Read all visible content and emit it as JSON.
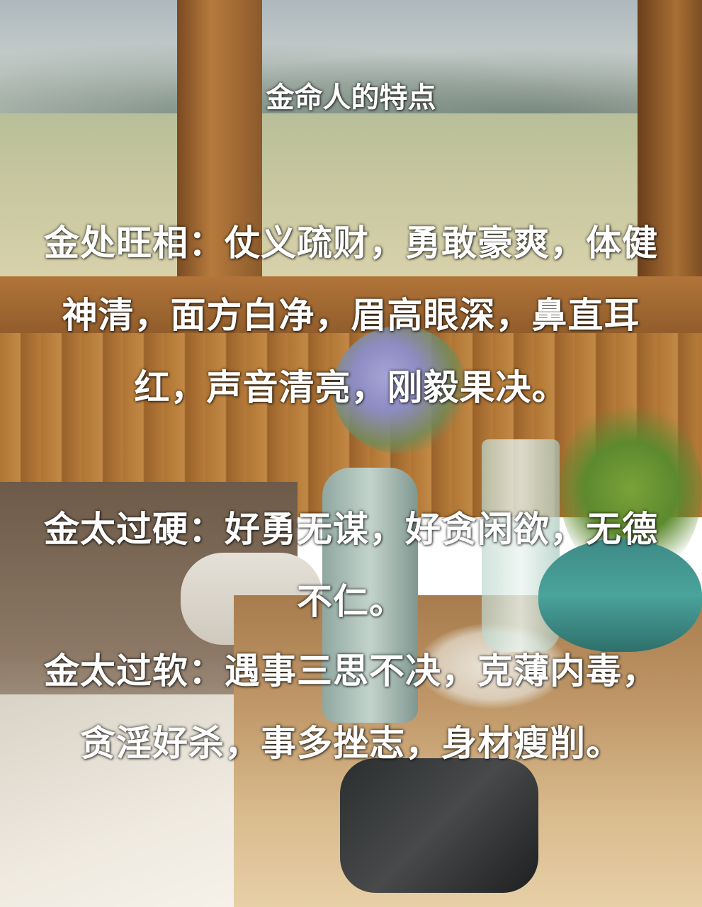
{
  "image": {
    "title": "金命人的特点",
    "paragraphs": [
      "金处旺相：仗义疏财，勇敢豪爽，体健神清，面方白净，眉高眼深，鼻直耳红，声音清亮，刚毅果决。",
      "金太过硬：好勇无谋，好贪闲欲，无德不仁。",
      "金太过软：遇事三思不决，克薄内毒，贪淫好杀，事多挫志，身材瘦削。"
    ]
  }
}
